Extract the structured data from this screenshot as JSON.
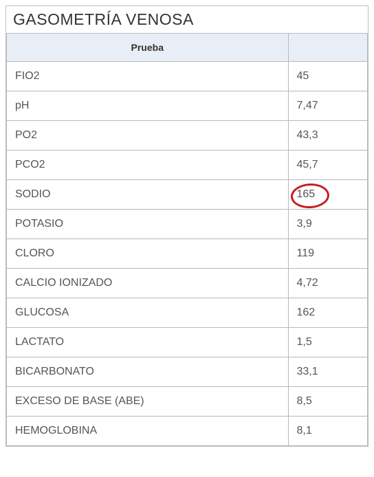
{
  "title": "GASOMETRÍA VENOSA",
  "table": {
    "header": {
      "test": "Prueba",
      "value": ""
    },
    "rows": [
      {
        "name": "FIO2",
        "value": "45",
        "highlighted": false
      },
      {
        "name": "pH",
        "value": "7,47",
        "highlighted": false
      },
      {
        "name": "PO2",
        "value": "43,3",
        "highlighted": false
      },
      {
        "name": "PCO2",
        "value": "45,7",
        "highlighted": false
      },
      {
        "name": "SODIO",
        "value": "165",
        "highlighted": true
      },
      {
        "name": "POTASIO",
        "value": "3,9",
        "highlighted": false
      },
      {
        "name": "CLORO",
        "value": "119",
        "highlighted": false
      },
      {
        "name": "CALCIO IONIZADO",
        "value": "4,72",
        "highlighted": false
      },
      {
        "name": "GLUCOSA",
        "value": "162",
        "highlighted": false
      },
      {
        "name": "LACTATO",
        "value": "1,5",
        "highlighted": false
      },
      {
        "name": "BICARBONATO",
        "value": "33,1",
        "highlighted": false
      },
      {
        "name": "EXCESO DE BASE (ABE)",
        "value": "8,5",
        "highlighted": false
      },
      {
        "name": "HEMOGLOBINA",
        "value": "8,1",
        "highlighted": false
      }
    ]
  },
  "styling": {
    "highlight_color": "#c41e1e",
    "header_bg": "#e8eef5",
    "border_color": "#b8b8b8",
    "text_color": "#555555",
    "title_color": "#333333",
    "title_fontsize": 23,
    "cell_fontsize": 16,
    "header_fontsize": 14
  }
}
